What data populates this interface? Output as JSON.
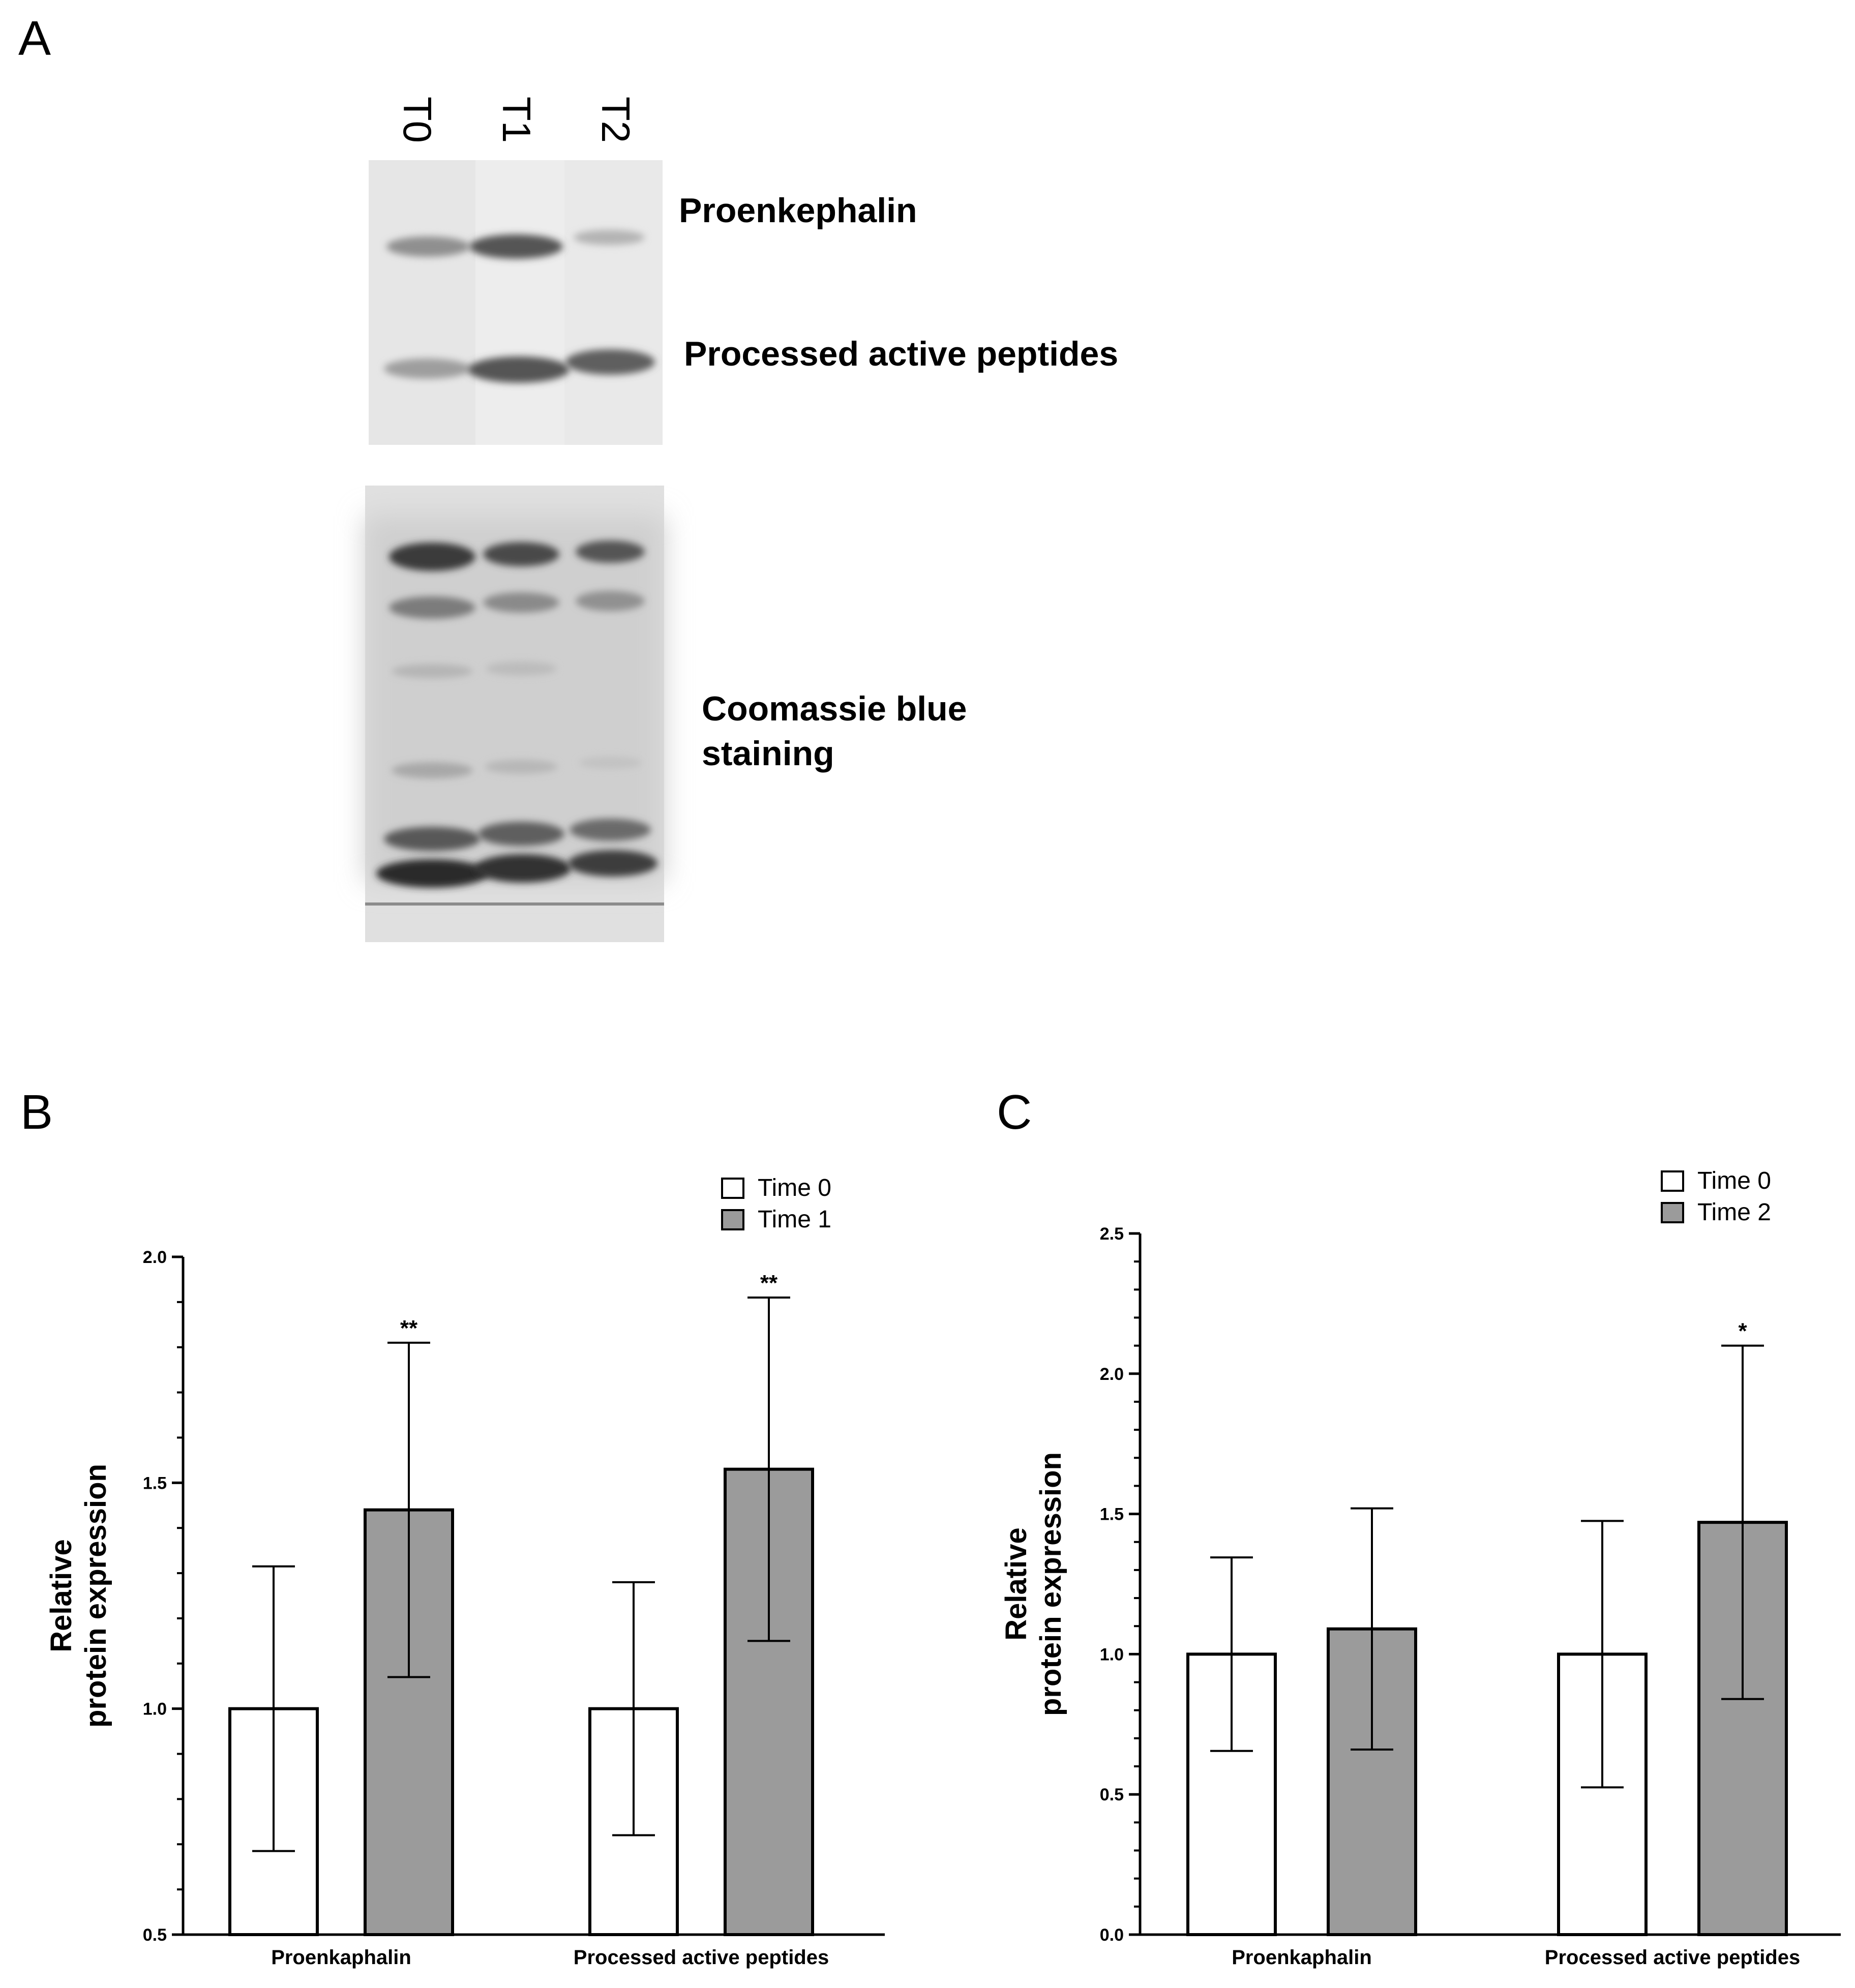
{
  "panels": {
    "a": {
      "letter": "A",
      "lanes": [
        "T0",
        "T1",
        "T2"
      ],
      "band_labels": {
        "proenkephalin": "Proenkephalin",
        "processed": "Processed active peptides",
        "coomassie_line1": "Coomassie blue",
        "coomassie_line2": "staining"
      }
    },
    "b": {
      "letter": "B"
    },
    "c": {
      "letter": "C"
    }
  },
  "chart_data": [
    {
      "type": "bar",
      "panel": "B",
      "categories": [
        "Proenkaphalin",
        "Processed active peptides"
      ],
      "ylabel_line1": "Relative",
      "ylabel_line2": "protein expression",
      "ylim": [
        0.5,
        2.0
      ],
      "yticks": [
        "0.5",
        "1.0",
        "1.5",
        "2.0"
      ],
      "minor_step": 0.1,
      "legend_position": "top-right",
      "series": [
        {
          "name": "Time 0",
          "color": "#ffffff",
          "values": [
            1.0,
            1.0
          ],
          "error": [
            0.315,
            0.28
          ],
          "significance": [
            "",
            ""
          ]
        },
        {
          "name": "Time 1",
          "color": "#9b9b9b",
          "values": [
            1.44,
            1.53
          ],
          "error": [
            0.37,
            0.38
          ],
          "significance": [
            "**",
            "**"
          ]
        }
      ]
    },
    {
      "type": "bar",
      "panel": "C",
      "categories": [
        "Proenkaphalin",
        "Processed active peptides"
      ],
      "ylabel_line1": "Relative",
      "ylabel_line2": "protein expression",
      "ylim": [
        0.0,
        2.5
      ],
      "yticks": [
        "0.0",
        "0.5",
        "1.0",
        "1.5",
        "2.0",
        "2.5"
      ],
      "minor_step": 0.1,
      "legend_position": "top-right",
      "series": [
        {
          "name": "Time 0",
          "color": "#ffffff",
          "values": [
            1.0,
            1.0
          ],
          "error": [
            0.345,
            0.475
          ],
          "significance": [
            "",
            ""
          ]
        },
        {
          "name": "Time 2",
          "color": "#9b9b9b",
          "values": [
            1.09,
            1.47
          ],
          "error": [
            0.43,
            0.63
          ],
          "significance": [
            "",
            "*"
          ]
        }
      ]
    }
  ]
}
